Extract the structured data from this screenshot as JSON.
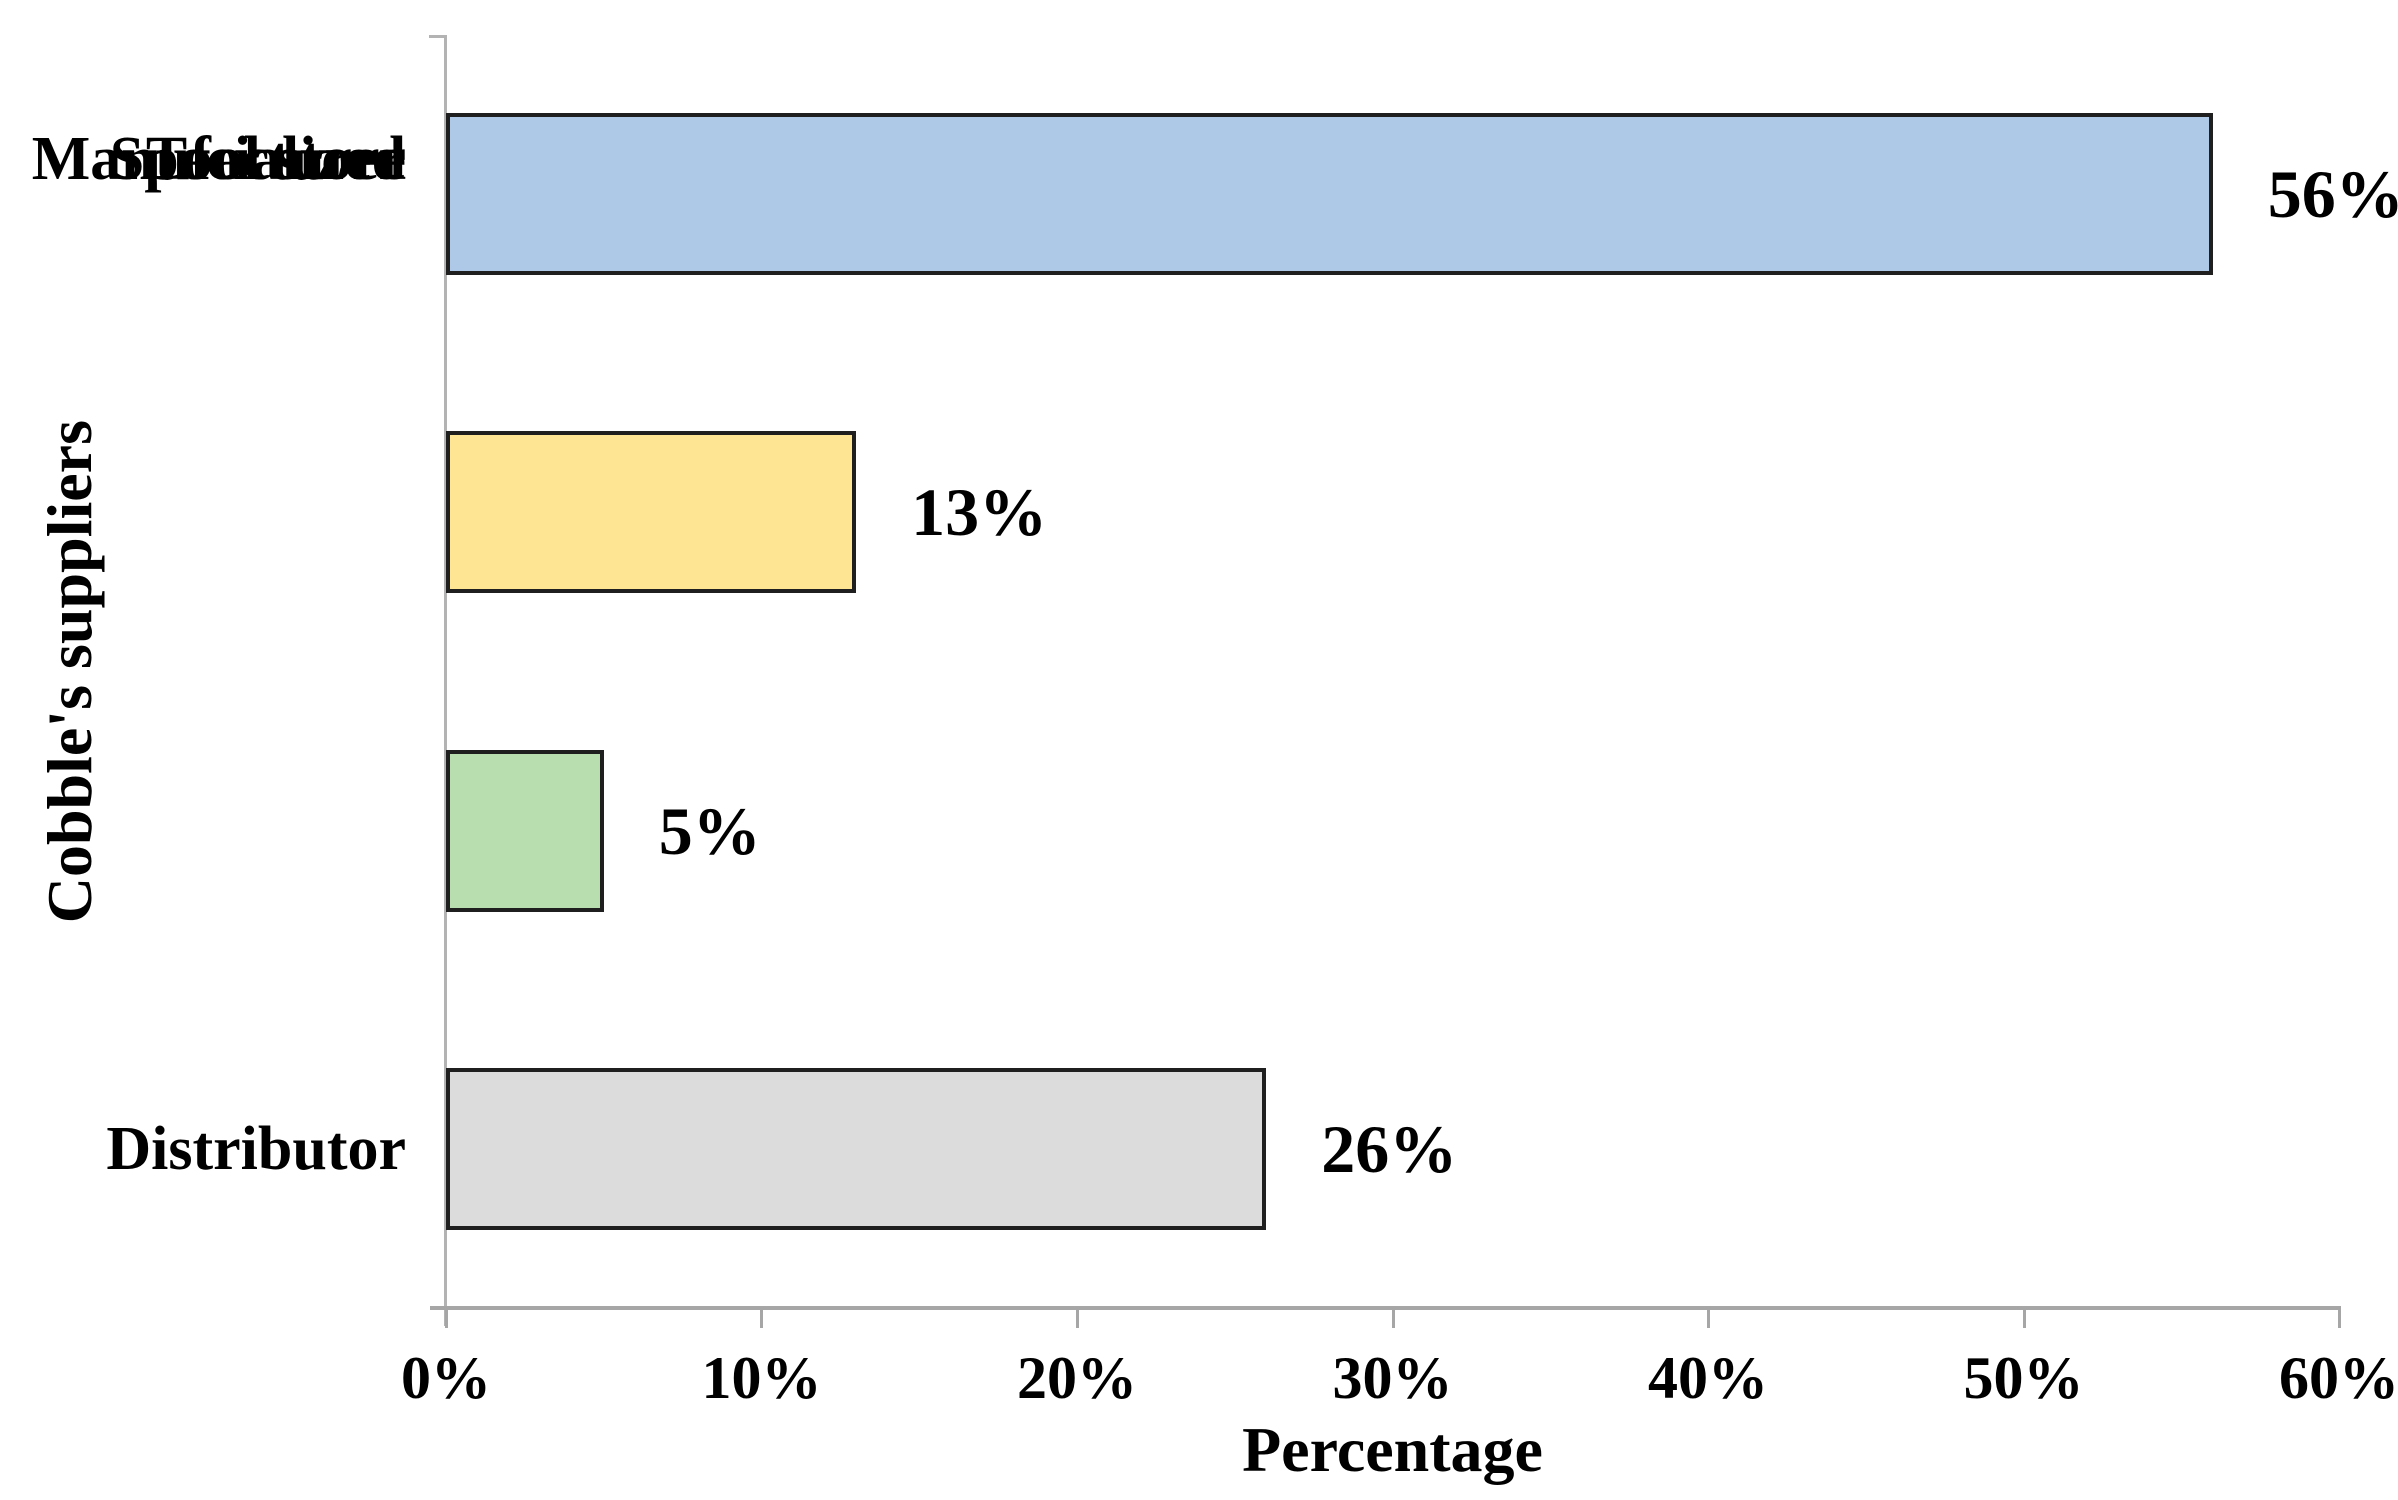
{
  "chart_data": {
    "type": "bar",
    "orientation": "horizontal",
    "categories": [
      "Distributor",
      "Tool store",
      "Specialized",
      "Manufacturer"
    ],
    "values": [
      56,
      13,
      5,
      26
    ],
    "value_labels": [
      "56%",
      "13%",
      "5%",
      "26%"
    ],
    "bar_colors": [
      "#aec9e8",
      "#fee593",
      "#b8deb0",
      "#dcdcdc"
    ],
    "bar_border_color": "#1f1f1f",
    "xlabel": "Percentage",
    "ylabel": "Cobble's suppliers",
    "xlim": [
      0,
      60
    ],
    "tick_step": 10,
    "tick_labels": [
      "0%",
      "10%",
      "20%",
      "30%",
      "40%",
      "50%",
      "60%"
    ],
    "grid": false,
    "legend": false,
    "axis_line_color": "#a6a6a6",
    "background_color": "#ffffff"
  }
}
